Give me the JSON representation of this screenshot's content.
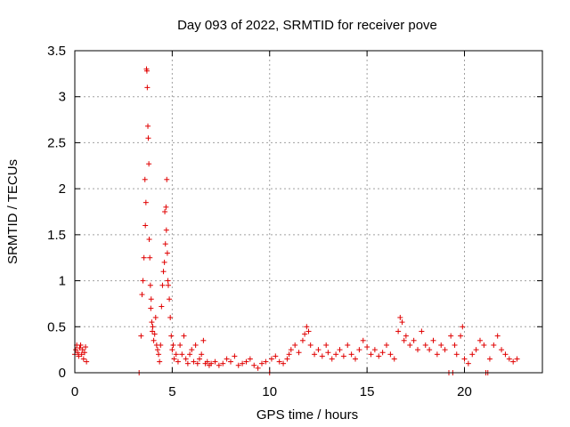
{
  "chart_data": {
    "type": "scatter",
    "title": "Day 093 of 2022, SRMTID for receiver pove",
    "xlabel": "GPS time / hours",
    "ylabel": "SRMTID / TECUs",
    "xlim": [
      0,
      24
    ],
    "ylim": [
      0,
      3.5
    ],
    "xticks": [
      0,
      5,
      10,
      15,
      20
    ],
    "xtick_labels": [
      "0",
      "5",
      "10",
      "15",
      "20"
    ],
    "yticks": [
      0,
      0.5,
      1,
      1.5,
      2,
      2.5,
      3,
      3.5
    ],
    "ytick_labels": [
      "0",
      "0.5",
      "1",
      "1.5",
      "2",
      "2.5",
      "3",
      "3.5"
    ],
    "grid": true,
    "marker": "+",
    "marker_color": "#e00000",
    "series": [
      {
        "name": "SRMTID",
        "points": [
          [
            0.0,
            0.2
          ],
          [
            0.05,
            0.25
          ],
          [
            0.1,
            0.3
          ],
          [
            0.15,
            0.22
          ],
          [
            0.2,
            0.18
          ],
          [
            0.25,
            0.27
          ],
          [
            0.3,
            0.3
          ],
          [
            0.35,
            0.2
          ],
          [
            0.4,
            0.25
          ],
          [
            0.45,
            0.15
          ],
          [
            0.5,
            0.22
          ],
          [
            0.55,
            0.28
          ],
          [
            0.6,
            0.12
          ],
          [
            3.3,
            0.0
          ],
          [
            3.4,
            0.4
          ],
          [
            3.45,
            0.85
          ],
          [
            3.5,
            1.0
          ],
          [
            3.55,
            1.25
          ],
          [
            3.6,
            2.1
          ],
          [
            3.62,
            1.6
          ],
          [
            3.65,
            1.85
          ],
          [
            3.68,
            3.3
          ],
          [
            3.7,
            3.28
          ],
          [
            3.72,
            3.1
          ],
          [
            3.75,
            2.68
          ],
          [
            3.77,
            2.55
          ],
          [
            3.8,
            2.27
          ],
          [
            3.82,
            1.45
          ],
          [
            3.85,
            1.25
          ],
          [
            3.88,
            0.95
          ],
          [
            3.9,
            0.7
          ],
          [
            3.92,
            0.8
          ],
          [
            3.95,
            0.55
          ],
          [
            3.98,
            0.45
          ],
          [
            4.0,
            0.5
          ],
          [
            4.05,
            0.35
          ],
          [
            4.1,
            0.42
          ],
          [
            4.15,
            0.6
          ],
          [
            4.2,
            0.3
          ],
          [
            4.25,
            0.25
          ],
          [
            4.3,
            0.2
          ],
          [
            4.35,
            0.12
          ],
          [
            4.4,
            0.3
          ],
          [
            4.45,
            0.72
          ],
          [
            4.5,
            0.95
          ],
          [
            4.55,
            1.1
          ],
          [
            4.6,
            1.2
          ],
          [
            4.62,
            1.75
          ],
          [
            4.65,
            1.4
          ],
          [
            4.68,
            1.8
          ],
          [
            4.7,
            1.55
          ],
          [
            4.72,
            2.1
          ],
          [
            4.75,
            1.3
          ],
          [
            4.78,
            1.0
          ],
          [
            4.8,
            0.95
          ],
          [
            4.85,
            0.8
          ],
          [
            4.9,
            0.6
          ],
          [
            4.95,
            0.4
          ],
          [
            5.0,
            0.25
          ],
          [
            5.05,
            0.3
          ],
          [
            5.1,
            0.15
          ],
          [
            5.2,
            0.2
          ],
          [
            5.3,
            0.12
          ],
          [
            5.4,
            0.3
          ],
          [
            5.5,
            0.2
          ],
          [
            5.6,
            0.4
          ],
          [
            5.7,
            0.15
          ],
          [
            5.8,
            0.1
          ],
          [
            5.9,
            0.2
          ],
          [
            6.0,
            0.25
          ],
          [
            6.1,
            0.12
          ],
          [
            6.2,
            0.3
          ],
          [
            6.3,
            0.1
          ],
          [
            6.4,
            0.15
          ],
          [
            6.5,
            0.2
          ],
          [
            6.6,
            0.35
          ],
          [
            6.7,
            0.1
          ],
          [
            6.8,
            0.12
          ],
          [
            6.9,
            0.08
          ],
          [
            7.0,
            0.1
          ],
          [
            7.2,
            0.12
          ],
          [
            7.4,
            0.08
          ],
          [
            7.6,
            0.1
          ],
          [
            7.8,
            0.15
          ],
          [
            8.0,
            0.12
          ],
          [
            8.2,
            0.18
          ],
          [
            8.4,
            0.08
          ],
          [
            8.6,
            0.1
          ],
          [
            8.8,
            0.12
          ],
          [
            9.0,
            0.15
          ],
          [
            9.2,
            0.08
          ],
          [
            9.4,
            0.05
          ],
          [
            9.6,
            0.1
          ],
          [
            9.8,
            0.12
          ],
          [
            10.0,
            0.0
          ],
          [
            10.1,
            0.15
          ],
          [
            10.3,
            0.18
          ],
          [
            10.5,
            0.12
          ],
          [
            10.7,
            0.1
          ],
          [
            10.9,
            0.15
          ],
          [
            11.0,
            0.2
          ],
          [
            11.1,
            0.25
          ],
          [
            11.3,
            0.3
          ],
          [
            11.5,
            0.22
          ],
          [
            11.7,
            0.35
          ],
          [
            11.8,
            0.42
          ],
          [
            11.9,
            0.5
          ],
          [
            12.0,
            0.45
          ],
          [
            12.1,
            0.3
          ],
          [
            12.3,
            0.2
          ],
          [
            12.5,
            0.25
          ],
          [
            12.7,
            0.18
          ],
          [
            12.9,
            0.3
          ],
          [
            13.0,
            0.22
          ],
          [
            13.2,
            0.15
          ],
          [
            13.4,
            0.2
          ],
          [
            13.6,
            0.25
          ],
          [
            13.8,
            0.18
          ],
          [
            14.0,
            0.3
          ],
          [
            14.2,
            0.2
          ],
          [
            14.4,
            0.15
          ],
          [
            14.6,
            0.25
          ],
          [
            14.8,
            0.35
          ],
          [
            15.0,
            0.28
          ],
          [
            15.2,
            0.2
          ],
          [
            15.4,
            0.25
          ],
          [
            15.6,
            0.18
          ],
          [
            15.8,
            0.22
          ],
          [
            16.0,
            0.3
          ],
          [
            16.2,
            0.2
          ],
          [
            16.4,
            0.15
          ],
          [
            16.6,
            0.45
          ],
          [
            16.7,
            0.6
          ],
          [
            16.8,
            0.55
          ],
          [
            16.9,
            0.35
          ],
          [
            17.0,
            0.4
          ],
          [
            17.2,
            0.3
          ],
          [
            17.4,
            0.35
          ],
          [
            17.6,
            0.25
          ],
          [
            17.8,
            0.45
          ],
          [
            18.0,
            0.3
          ],
          [
            18.2,
            0.25
          ],
          [
            18.4,
            0.35
          ],
          [
            18.6,
            0.2
          ],
          [
            18.8,
            0.3
          ],
          [
            19.0,
            0.25
          ],
          [
            19.2,
            0.0
          ],
          [
            19.3,
            0.4
          ],
          [
            19.4,
            0.0
          ],
          [
            19.5,
            0.3
          ],
          [
            19.6,
            0.2
          ],
          [
            19.8,
            0.4
          ],
          [
            19.9,
            0.5
          ],
          [
            20.0,
            0.15
          ],
          [
            20.2,
            0.1
          ],
          [
            20.4,
            0.2
          ],
          [
            20.6,
            0.25
          ],
          [
            20.8,
            0.35
          ],
          [
            21.0,
            0.3
          ],
          [
            21.1,
            0.0
          ],
          [
            21.2,
            0.0
          ],
          [
            21.3,
            0.15
          ],
          [
            21.5,
            0.3
          ],
          [
            21.7,
            0.4
          ],
          [
            21.9,
            0.25
          ],
          [
            22.1,
            0.2
          ],
          [
            22.3,
            0.15
          ],
          [
            22.5,
            0.12
          ],
          [
            22.7,
            0.15
          ]
        ]
      }
    ]
  }
}
